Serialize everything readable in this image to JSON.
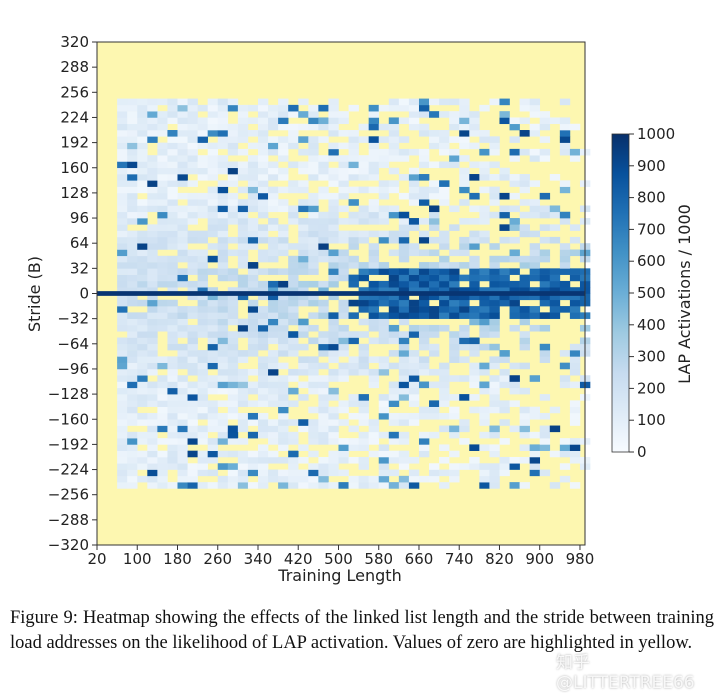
{
  "chart_data": {
    "type": "heatmap",
    "xlabel": "Training Length",
    "ylabel": "Stride (B)",
    "x_ticks": [
      20,
      100,
      180,
      260,
      340,
      420,
      500,
      580,
      660,
      740,
      820,
      900,
      980
    ],
    "y_ticks": [
      320,
      288,
      256,
      224,
      192,
      160,
      128,
      96,
      64,
      32,
      0,
      -32,
      -64,
      -96,
      -128,
      -160,
      -192,
      -224,
      -256,
      -288,
      -320
    ],
    "xlim": [
      20,
      990
    ],
    "ylim": [
      -320,
      320
    ],
    "data_x_range": [
      60,
      990
    ],
    "data_y_range": [
      -248,
      248
    ],
    "zero_stride_band": {
      "stride": 0,
      "value": 980
    },
    "dense_band": {
      "x_from": 520,
      "stride_from": -32,
      "stride_to": 32,
      "value": 930
    },
    "zero_color": "#fdf7b0",
    "colorbar": {
      "label": "LAP Activations / 1000",
      "ticks": [
        0,
        100,
        200,
        300,
        400,
        500,
        600,
        700,
        800,
        900,
        1000
      ],
      "range": [
        0,
        1000
      ],
      "colors": [
        "#f7fbff",
        "#deebf7",
        "#c6dbef",
        "#9ecae1",
        "#6baed6",
        "#4292c6",
        "#2171b5",
        "#08519c",
        "#08306b"
      ]
    }
  },
  "caption": "Figure 9: Heatmap showing the effects of the linked list length and the stride between training load addresses on the likelihood of LAP activation. Values of zero are highlighted in yellow.",
  "watermark": "知乎 @LITTERTREE66"
}
